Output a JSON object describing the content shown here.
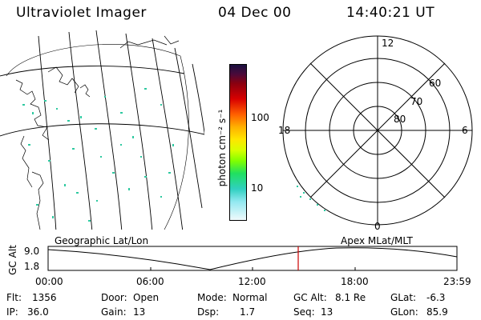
{
  "header": {
    "instrument": "Ultraviolet Imager",
    "date": "04 Dec 00",
    "time": "14:40:21 UT"
  },
  "colorbar": {
    "unit_label": "photon cm⁻² s⁻¹",
    "ticks": [
      "100",
      "10"
    ]
  },
  "polar": {
    "mlt_labels": {
      "top": "12",
      "left": "18",
      "right": "6",
      "bottom": "0"
    },
    "lat_labels": [
      "60",
      "70",
      "80"
    ]
  },
  "timeline": {
    "left_title": "Geographic Lat/Lon",
    "right_title": "Apex MLat/MLT",
    "y_axis_label": "GC Alt",
    "y_ticks": [
      "9.0",
      "1.8"
    ],
    "x_ticks": [
      "00:00",
      "06:00",
      "12:00",
      "18:00",
      "23:59"
    ],
    "cursor_time": "14:40:21"
  },
  "footer": {
    "row1": [
      {
        "label": "Flt:",
        "value": "1356"
      },
      {
        "label": "Door:",
        "value": "Open"
      },
      {
        "label": "Mode:",
        "value": "Normal"
      },
      {
        "label": "GC Alt:",
        "value": "8.1 Re"
      },
      {
        "label": "GLat:",
        "value": "-6.3"
      }
    ],
    "row2": [
      {
        "label": "IP:",
        "value": "36.0"
      },
      {
        "label": "Gain:",
        "value": "13"
      },
      {
        "label": "Dsp:",
        "value": "1.7"
      },
      {
        "label": "Seq:",
        "value": "13"
      },
      {
        "label": "GLon:",
        "value": "85.9"
      }
    ]
  },
  "colors": {
    "cursor": "#cc0000",
    "aurora": "#2ec9a0"
  }
}
